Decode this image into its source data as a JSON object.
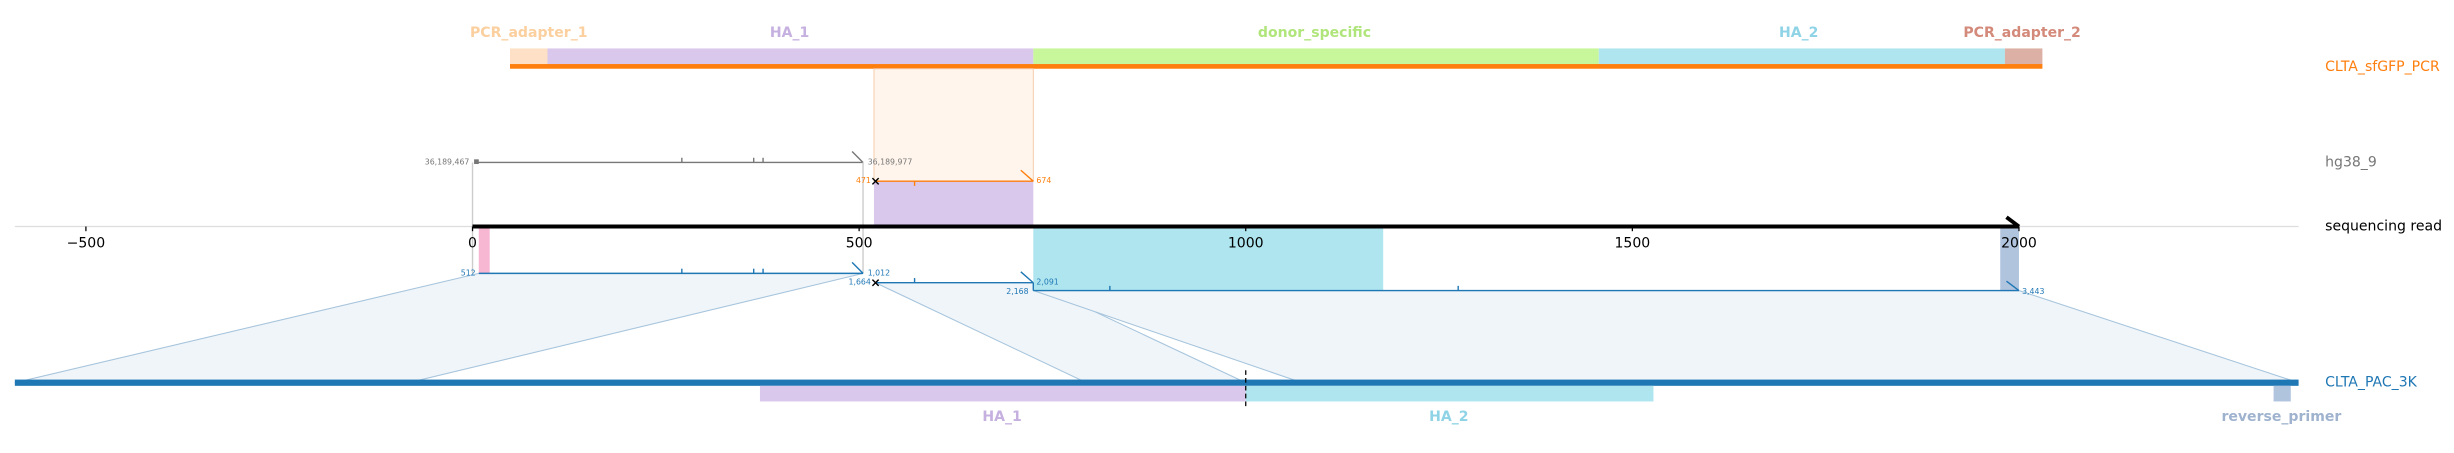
{
  "top_features": [
    "PCR_adapter_1",
    "HA_1",
    "donor_specific",
    "HA_2",
    "PCR_adapter_2"
  ],
  "track_labels": {
    "pcr": "CLTA_sfGFP_PCR",
    "genome": "hg38_9",
    "read": "sequencing read",
    "plasmid": "CLTA_PAC_3K"
  },
  "genome_coords": [
    "36,189,467",
    "36,189,977"
  ],
  "pcr_coords": [
    "471",
    "674"
  ],
  "plasmid_coords": [
    "512",
    "1,012",
    "1,664",
    "2,091",
    "2,168",
    "3,443"
  ],
  "axis_ticks": [
    {
      "value": -500,
      "label": "−500"
    },
    0,
    500,
    1000,
    1500,
    2000
  ],
  "bottom_features": [
    "HA_1",
    "HA_2",
    "reverse_primer"
  ]
}
